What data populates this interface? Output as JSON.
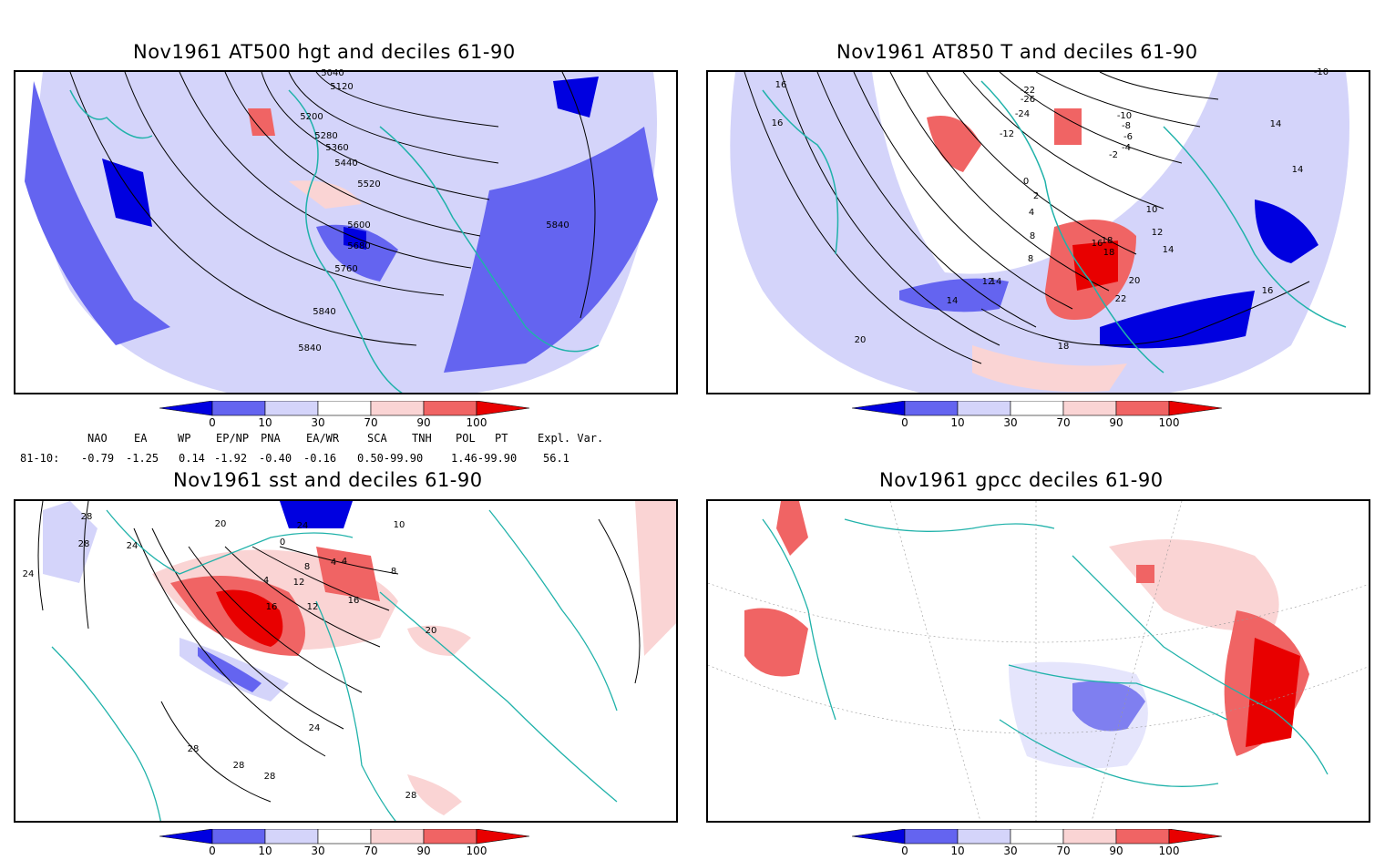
{
  "panels": [
    {
      "title": "Nov1961 AT500 hgt and deciles 61-90",
      "contour_labels": [
        "5040",
        "5120",
        "5200",
        "5280",
        "5360",
        "5440",
        "5520",
        "5600",
        "5680",
        "5760",
        "5840",
        "5840",
        "5840"
      ]
    },
    {
      "title": "Nov1961 AT850 T and deciles 61-90",
      "contour_labels": [
        "16",
        "16",
        "14",
        "14",
        "14",
        "-10",
        "-12",
        "-22",
        "-24",
        "-26",
        "-10",
        "-8",
        "-6",
        "-4",
        "-2",
        "0",
        "2",
        "4",
        "8",
        "10",
        "12",
        "12",
        "14",
        "16",
        "18",
        "18",
        "20",
        "22",
        "20",
        "18",
        "16",
        "8",
        "14"
      ]
    },
    {
      "title": "Nov1961 sst and deciles 61-90",
      "contour_labels": [
        "28",
        "28",
        "24",
        "24",
        "24",
        "20",
        "16",
        "12",
        "8",
        "4",
        "4",
        "4",
        "0",
        "10",
        "12",
        "16",
        "20",
        "24",
        "28",
        "28",
        "28",
        "28",
        "8"
      ]
    },
    {
      "title": "Nov1961 gpcc deciles 61-90",
      "contour_labels": []
    }
  ],
  "colorbar": {
    "ticks": [
      "0",
      "10",
      "30",
      "70",
      "90",
      "100"
    ],
    "colors": [
      "#0000e0",
      "#6464f0",
      "#d4d4fa",
      "#ffffff",
      "#fad4d4",
      "#f06464",
      "#e80000"
    ]
  },
  "indices": {
    "headers": [
      "NAO",
      "EA",
      "WP",
      "EP/NP",
      "PNA",
      "EA/WR",
      "SCA",
      "TNH",
      "POL",
      "PT",
      "Expl. Var."
    ],
    "row_label": "81-10:",
    "values": [
      "-0.79",
      "-1.25",
      "0.14",
      "-1.92",
      "-0.40",
      "-0.16",
      "0.50-99.90",
      "",
      "1.46-99.90",
      "",
      "56.1"
    ]
  },
  "colors": {
    "coast": "#20b2aa",
    "contour": "#000000",
    "dark_blue": "#0000e0",
    "mid_blue": "#6464f0",
    "light_blue": "#d4d4fa",
    "light_red": "#fad4d4",
    "mid_red": "#f06464",
    "dark_red": "#e80000"
  }
}
